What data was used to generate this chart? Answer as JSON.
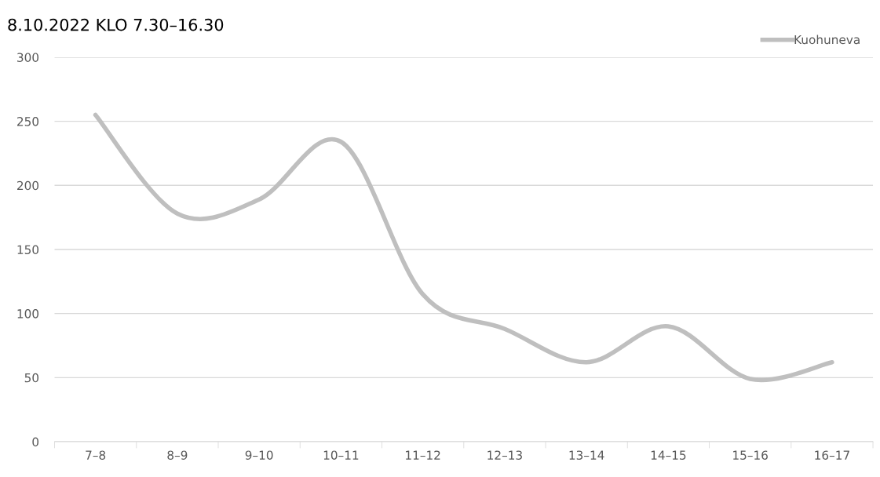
{
  "chart_data": {
    "type": "line",
    "title": "8.10.2022 KLO 7.30–16.30",
    "categories": [
      "7–8",
      "8–9",
      "9–10",
      "10–11",
      "11–12",
      "12–13",
      "13–14",
      "14–15",
      "15–16",
      "16–17"
    ],
    "series": [
      {
        "name": "Kuohuneva",
        "color": "#bfbfbf",
        "values": [
          255,
          178,
          189,
          234,
          115,
          88,
          62,
          90,
          49,
          62
        ]
      }
    ],
    "ylim": [
      0,
      300
    ],
    "yticks": [
      0,
      50,
      100,
      150,
      200,
      250,
      300
    ],
    "grid": "y",
    "legend": "top right",
    "marker": "none",
    "line_style": "solid"
  }
}
